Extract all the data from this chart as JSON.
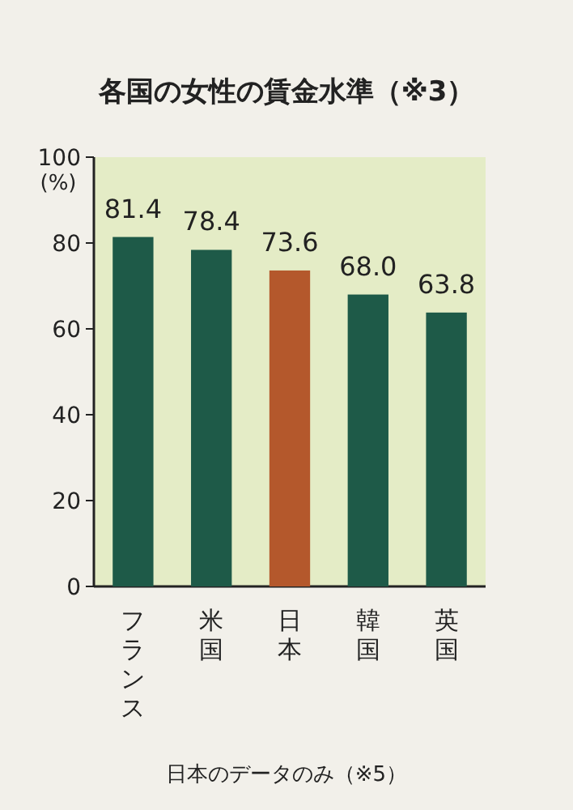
{
  "chart_data": {
    "type": "bar",
    "title": "各国の女性の賃金水準（※3）",
    "ylabel": "(%)",
    "categories": [
      "フランス",
      "米国",
      "日本",
      "韓国",
      "英国"
    ],
    "values": [
      81.4,
      78.4,
      73.6,
      68.0,
      63.8
    ],
    "value_labels": [
      "81.4",
      "78.4",
      "73.6",
      "68.0",
      "63.8"
    ],
    "colors": [
      "#1e5a48",
      "#1e5a48",
      "#b4582c",
      "#1e5a48",
      "#1e5a48"
    ],
    "ylim": [
      0,
      100
    ],
    "yticks": [
      0,
      20,
      40,
      60,
      80,
      100
    ],
    "grid": false,
    "annotations": [
      "日本のデータのみ（※5）"
    ]
  }
}
